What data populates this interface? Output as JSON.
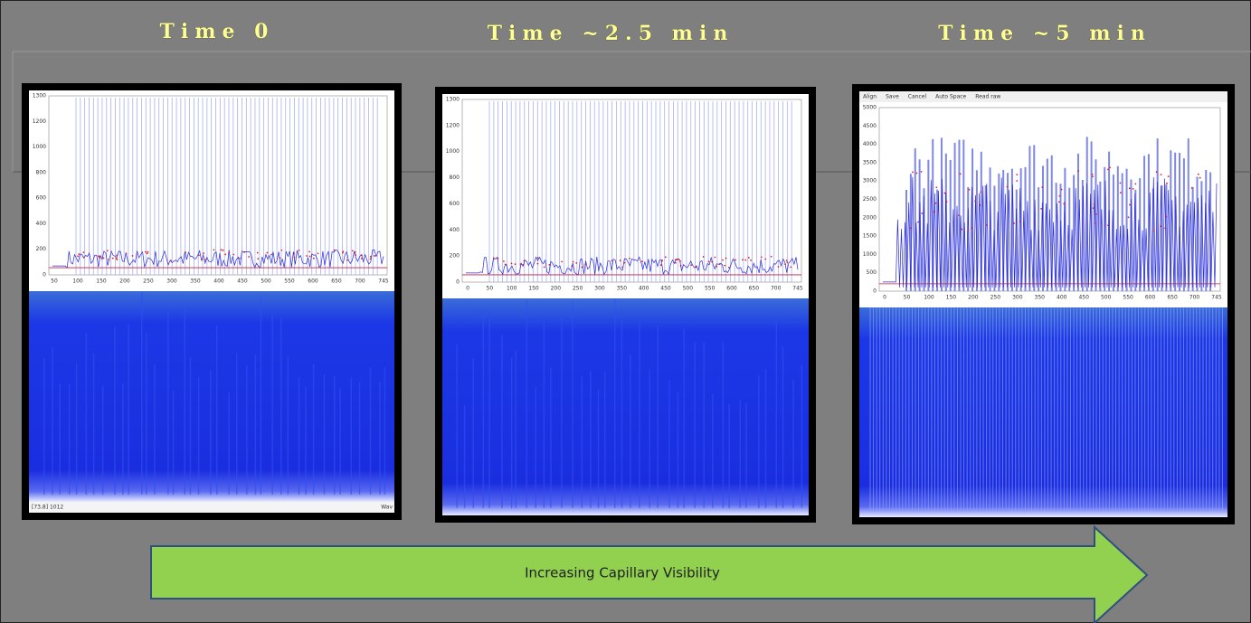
{
  "titles": [
    "Time 0",
    "Time ~2.5 min",
    "Time ~5 min"
  ],
  "panels": [
    {
      "yticks": [
        "1300",
        "1200",
        "1000",
        "800",
        "600",
        "400",
        "200",
        "0"
      ],
      "xticks": [
        "50",
        "100",
        "150",
        "200",
        "250",
        "300",
        "350",
        "400",
        "450",
        "500",
        "550",
        "600",
        "650",
        "700",
        "745"
      ],
      "status": [
        "[73,8] 1012",
        "Wav"
      ]
    },
    {
      "yticks": [
        "1300",
        "1200",
        "1000",
        "800",
        "600",
        "400",
        "200",
        "0"
      ],
      "xticks": [
        "0",
        "50",
        "100",
        "150",
        "200",
        "250",
        "300",
        "350",
        "400",
        "450",
        "500",
        "550",
        "600",
        "650",
        "700",
        "745"
      ]
    },
    {
      "toolbar": [
        "Align",
        "Save",
        "Cancel",
        "Auto Space",
        "Read raw"
      ],
      "yticks": [
        "5000",
        "4500",
        "4000",
        "3500",
        "3000",
        "2500",
        "2000",
        "1500",
        "1000",
        "500",
        "0"
      ],
      "xticks": [
        "0",
        "50",
        "100",
        "150",
        "200",
        "250",
        "300",
        "350",
        "400",
        "450",
        "500",
        "550",
        "600",
        "650",
        "700",
        "745"
      ]
    }
  ],
  "arrow_label": "Increasing Capillary Visibility"
}
